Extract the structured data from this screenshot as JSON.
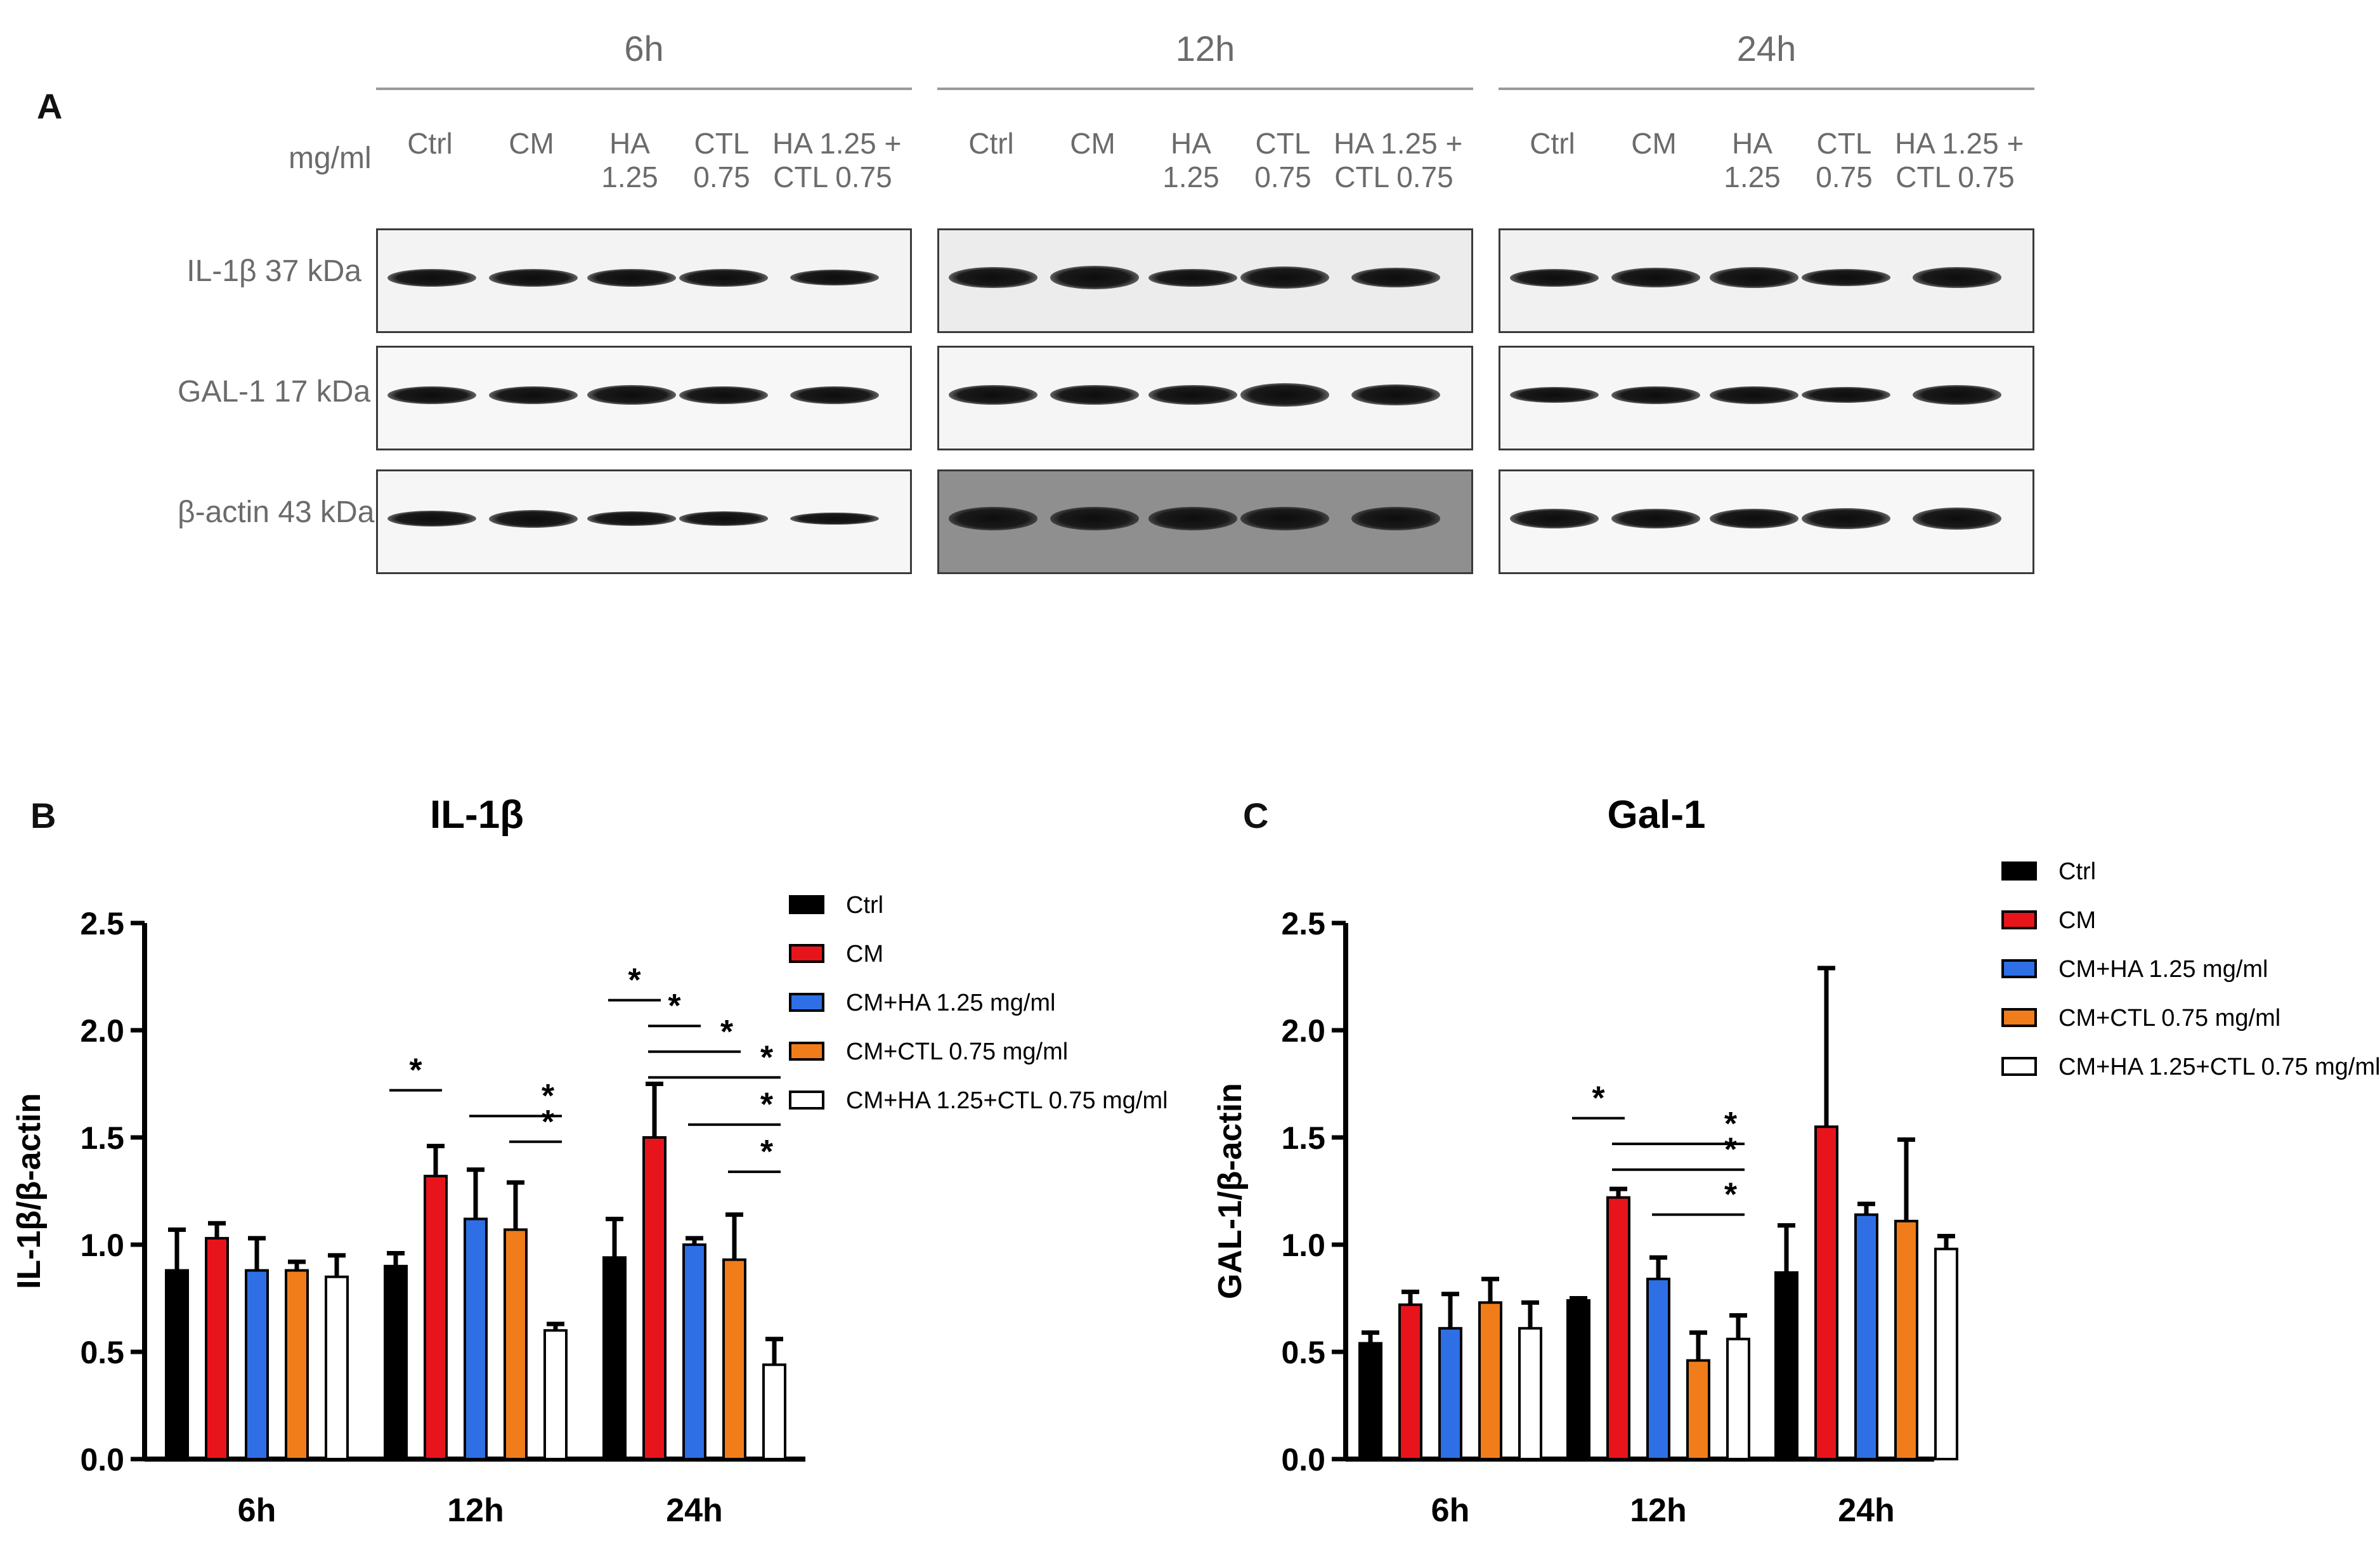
{
  "panel_a": {
    "letter": "A",
    "unit_label": "mg/ml",
    "timepoints": [
      "6h",
      "12h",
      "24h"
    ],
    "lanes": [
      {
        "line1": "Ctrl",
        "line2": ""
      },
      {
        "line1": "CM",
        "line2": ""
      },
      {
        "line1": "HA",
        "line2": "1.25"
      },
      {
        "line1": "CTL",
        "line2": "0.75"
      },
      {
        "line1": "HA 1.25 +",
        "line2": "CTL 0.75"
      }
    ],
    "rows": [
      "IL-1β 37 kDa",
      "GAL-1 17 kDa",
      "β-actin 43 kDa"
    ]
  },
  "chart_data": [
    {
      "panel": "B",
      "type": "bar",
      "title": "IL-1β",
      "xlabel": "",
      "ylabel": "IL-1β/β-actin",
      "ylim": [
        0,
        2.5
      ],
      "yticks": [
        "0.0",
        "0.5",
        "1.0",
        "1.5",
        "2.0",
        "2.5"
      ],
      "categories": [
        "6h",
        "12h",
        "24h"
      ],
      "series": [
        {
          "name": "Ctrl",
          "color": "#000000",
          "values": [
            0.88,
            0.9,
            0.94
          ],
          "errors": [
            0.19,
            0.06,
            0.18
          ]
        },
        {
          "name": "CM",
          "color": "#e8141c",
          "values": [
            1.03,
            1.32,
            1.5
          ],
          "errors": [
            0.07,
            0.14,
            0.25
          ]
        },
        {
          "name": "CM+HA 1.25 mg/ml",
          "color": "#2e6fe6",
          "values": [
            0.88,
            1.12,
            1.0
          ],
          "errors": [
            0.15,
            0.23,
            0.03
          ]
        },
        {
          "name": "CM+CTL 0.75 mg/ml",
          "color": "#f07d1a",
          "values": [
            0.88,
            1.07,
            0.93
          ],
          "errors": [
            0.04,
            0.22,
            0.21
          ]
        },
        {
          "name": "CM+HA 1.25+CTL 0.75  mg/ml",
          "color": "#ffffff",
          "values": [
            0.85,
            0.6,
            0.44
          ],
          "errors": [
            0.1,
            0.03,
            0.12
          ]
        }
      ],
      "significance": [
        {
          "cat": 1,
          "from": 0,
          "to": 1,
          "y": 1.72,
          "label": "*"
        },
        {
          "cat": 1,
          "from": 2,
          "to": 4,
          "y": 1.6,
          "label": "*"
        },
        {
          "cat": 1,
          "from": 3,
          "to": 4,
          "y": 1.48,
          "label": "*"
        },
        {
          "cat": 2,
          "from": 0,
          "to": 1,
          "y": 2.14,
          "label": "*"
        },
        {
          "cat": 2,
          "from": 1,
          "to": 2,
          "y": 2.02,
          "label": "*"
        },
        {
          "cat": 2,
          "from": 1,
          "to": 3,
          "y": 1.9,
          "label": "*"
        },
        {
          "cat": 2,
          "from": 1,
          "to": 4,
          "y": 1.78,
          "label": "*"
        },
        {
          "cat": 2,
          "from": 2,
          "to": 4,
          "y": 1.56,
          "label": "*"
        },
        {
          "cat": 2,
          "from": 3,
          "to": 4,
          "y": 1.34,
          "label": "*"
        }
      ],
      "legend_position": "top-right"
    },
    {
      "panel": "C",
      "type": "bar",
      "title": "Gal-1",
      "xlabel": "",
      "ylabel": "GAL-1/β-actin",
      "ylim": [
        0,
        2.5
      ],
      "yticks": [
        "0.0",
        "0.5",
        "1.0",
        "1.5",
        "2.0",
        "2.5"
      ],
      "categories": [
        "6h",
        "12h",
        "24h"
      ],
      "series": [
        {
          "name": "Ctrl",
          "color": "#000000",
          "values": [
            0.54,
            0.74,
            0.87
          ],
          "errors": [
            0.05,
            0.01,
            0.22
          ]
        },
        {
          "name": "CM",
          "color": "#e8141c",
          "values": [
            0.72,
            1.22,
            1.55
          ],
          "errors": [
            0.06,
            0.04,
            0.74
          ]
        },
        {
          "name": "CM+HA 1.25 mg/ml",
          "color": "#2e6fe6",
          "values": [
            0.61,
            0.84,
            1.14
          ],
          "errors": [
            0.16,
            0.1,
            0.05
          ]
        },
        {
          "name": "CM+CTL 0.75 mg/ml",
          "color": "#f07d1a",
          "values": [
            0.73,
            0.46,
            1.11
          ],
          "errors": [
            0.11,
            0.13,
            0.38
          ]
        },
        {
          "name": "CM+HA 1.25+CTL 0.75  mg/ml",
          "color": "#ffffff",
          "values": [
            0.61,
            0.56,
            0.98
          ],
          "errors": [
            0.12,
            0.11,
            0.06
          ]
        }
      ],
      "significance": [
        {
          "cat": 1,
          "from": 0,
          "to": 1,
          "y": 1.59,
          "label": "*"
        },
        {
          "cat": 1,
          "from": 1,
          "to": 4,
          "y": 1.47,
          "label": "*"
        },
        {
          "cat": 1,
          "from": 1,
          "to": 4,
          "y": 1.35,
          "label": "*"
        },
        {
          "cat": 1,
          "from": 2,
          "to": 4,
          "y": 1.14,
          "label": "*"
        }
      ],
      "legend_position": "top-right"
    }
  ]
}
